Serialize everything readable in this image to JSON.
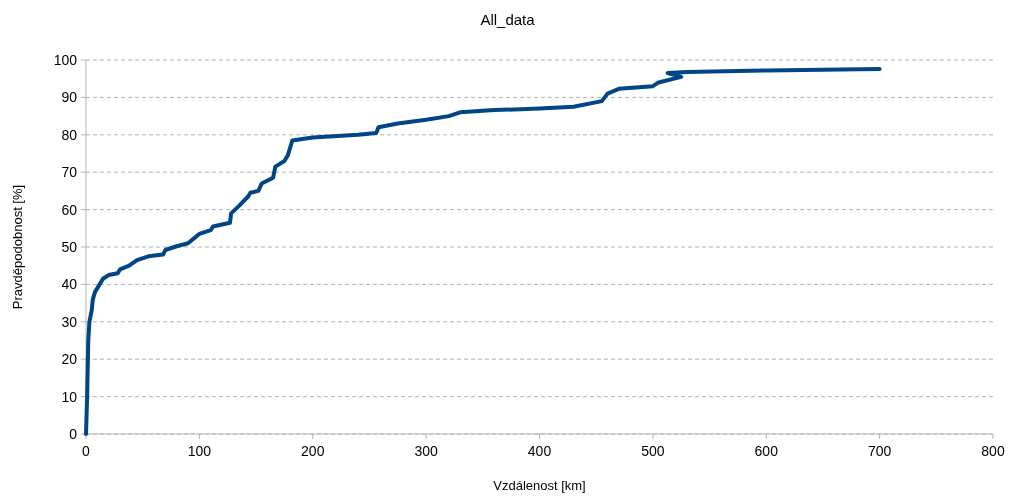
{
  "chart_data": {
    "type": "line",
    "title": "All_data",
    "xlabel": "Vzdálenost [km]",
    "ylabel": "Pravděpodobnost [%]",
    "xlim": [
      0,
      800
    ],
    "xticks": [
      0,
      100,
      200,
      300,
      400,
      500,
      600,
      700,
      800
    ],
    "ylim": [
      0,
      100
    ],
    "yticks": [
      0,
      10,
      20,
      30,
      40,
      50,
      60,
      70,
      80,
      90,
      100
    ],
    "grid": "y",
    "marker": "none",
    "line_style": "solid",
    "series": [
      {
        "color": "#004586",
        "x": [
          0,
          1,
          2,
          3,
          5,
          6,
          8,
          10,
          12,
          15,
          20,
          28,
          30,
          38,
          45,
          55,
          68,
          70,
          80,
          90,
          100,
          110,
          112,
          127,
          128,
          135,
          143,
          145,
          152,
          155,
          165,
          167,
          175,
          178,
          180,
          182,
          200,
          240,
          256,
          258,
          275,
          300,
          320,
          330,
          360,
          400,
          430,
          455,
          460,
          470,
          500,
          505,
          525,
          513,
          530,
          600,
          700
        ],
        "values": [
          0,
          10,
          25,
          30,
          33,
          36,
          38,
          39,
          40,
          41.5,
          42.5,
          43,
          44,
          45,
          46.5,
          47.5,
          48,
          49.2,
          50.2,
          51,
          53.5,
          54.5,
          55.5,
          56.5,
          59,
          61,
          63.5,
          64.5,
          65,
          67,
          68.5,
          71.5,
          73,
          74.5,
          76.5,
          78.5,
          79.3,
          80,
          80.5,
          82,
          83,
          84,
          85,
          86,
          86.6,
          87,
          87.5,
          89,
          91,
          92.3,
          93,
          94,
          95.5,
          96.5,
          96.8,
          97.2,
          97.6
        ]
      }
    ]
  }
}
